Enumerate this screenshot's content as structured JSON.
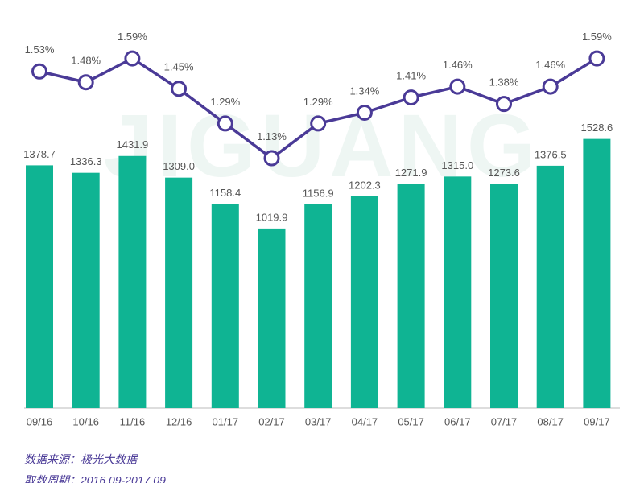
{
  "chart_data": {
    "type": "bar_line",
    "categories": [
      "09/16",
      "10/16",
      "11/16",
      "12/16",
      "01/17",
      "02/17",
      "03/17",
      "04/17",
      "05/17",
      "06/17",
      "07/17",
      "08/17",
      "09/17"
    ],
    "series": [
      {
        "type": "bar",
        "color": "#0fb493",
        "values": [
          1378.7,
          1336.3,
          1431.9,
          1309.0,
          1158.4,
          1019.9,
          1156.9,
          1202.3,
          1271.9,
          1315.0,
          1273.6,
          1376.5,
          1528.6
        ],
        "value_labels": [
          "1378.7",
          "1336.3",
          "1431.9",
          "1309.0",
          "1158.4",
          "1019.9",
          "1156.9",
          "1202.3",
          "1271.9",
          "1315.0",
          "1273.6",
          "1376.5",
          "1528.6"
        ]
      },
      {
        "type": "line",
        "axis": "y2",
        "color": "#4a3a97",
        "values": [
          1.53,
          1.48,
          1.59,
          1.45,
          1.29,
          1.13,
          1.29,
          1.34,
          1.41,
          1.46,
          1.38,
          1.46,
          1.59
        ],
        "value_labels": [
          "1.53%",
          "1.48%",
          "1.59%",
          "1.45%",
          "1.29%",
          "1.13%",
          "1.29%",
          "1.34%",
          "1.41%",
          "1.46%",
          "1.38%",
          "1.46%",
          "1.59%"
        ]
      }
    ],
    "ylim": [
      0,
      1600
    ],
    "y2lim": [
      0,
      1.8
    ],
    "watermark": "JIGUANG",
    "source": "数据来源：极光大数据",
    "period": "取数周期：2016.09-2017.09"
  }
}
